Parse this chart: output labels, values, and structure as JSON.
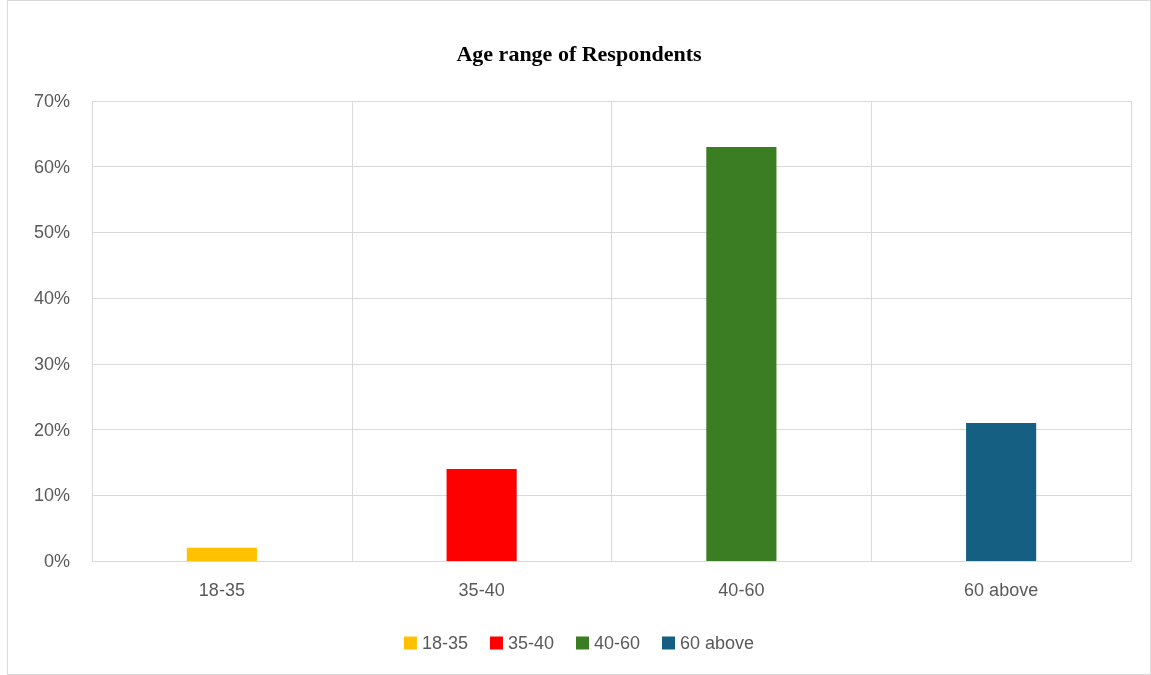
{
  "chart_data": {
    "type": "bar",
    "title": "Age range of Respondents",
    "categories": [
      "18-35",
      "35-40",
      "40-60",
      "60 above"
    ],
    "series": [
      {
        "name": "18-35",
        "color": "#ffc000",
        "values": [
          2,
          null,
          null,
          null
        ]
      },
      {
        "name": "35-40",
        "color": "#ff0000",
        "values": [
          null,
          14,
          null,
          null
        ]
      },
      {
        "name": "40-60",
        "color": "#3a7d22",
        "values": [
          null,
          null,
          63,
          null
        ]
      },
      {
        "name": "60 above",
        "color": "#156082",
        "values": [
          null,
          null,
          null,
          21
        ]
      }
    ],
    "stacked": true,
    "ylim": [
      0,
      70
    ],
    "yticks": [
      {
        "value": 0,
        "label": "0%"
      },
      {
        "value": 10,
        "label": "10%"
      },
      {
        "value": 20,
        "label": "20%"
      },
      {
        "value": 30,
        "label": "30%"
      },
      {
        "value": 40,
        "label": "40%"
      },
      {
        "value": 50,
        "label": "50%"
      },
      {
        "value": 60,
        "label": "60%"
      },
      {
        "value": 70,
        "label": "70%"
      }
    ],
    "grid": true,
    "legend": "bottom"
  }
}
